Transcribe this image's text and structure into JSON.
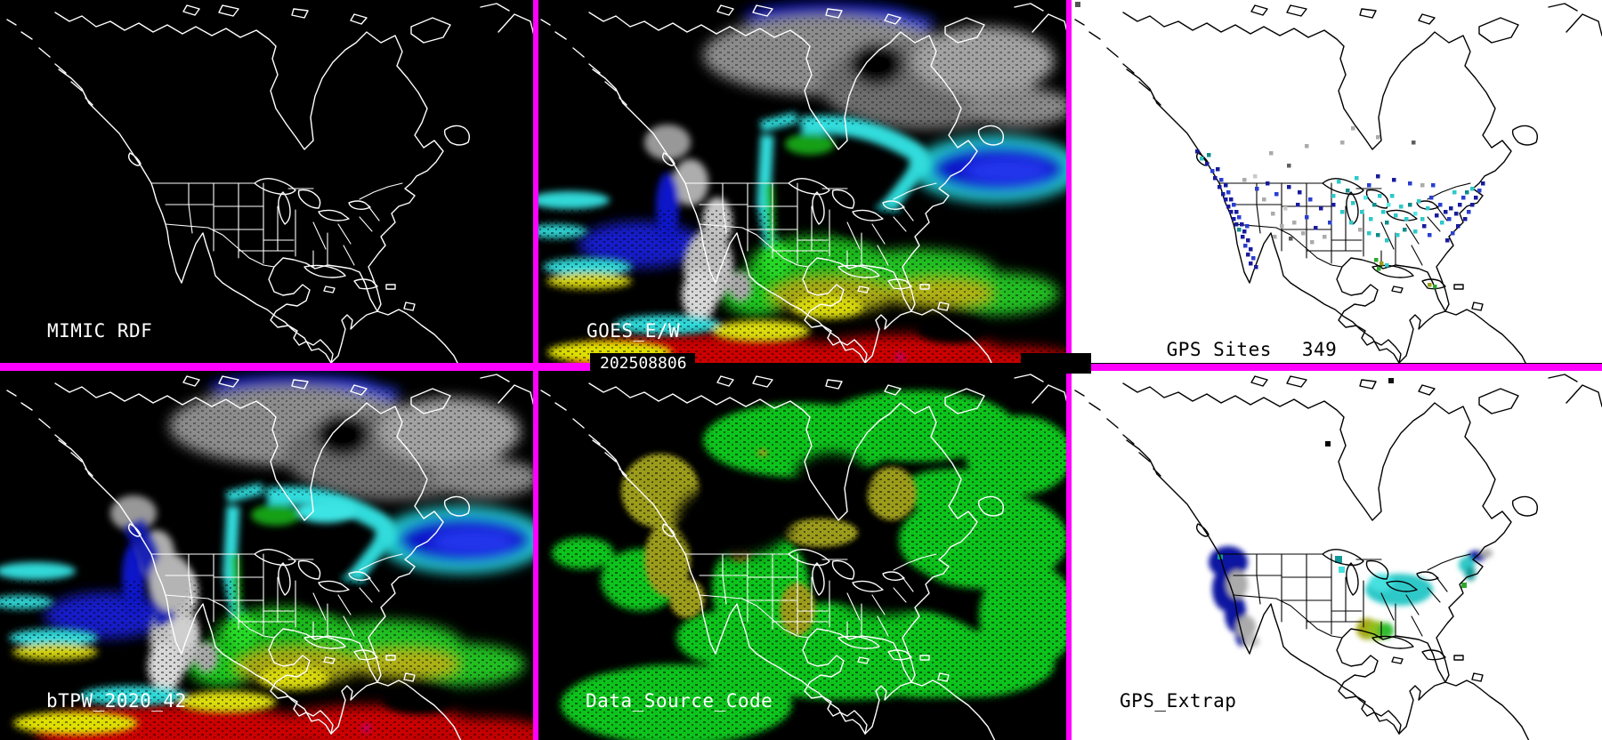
{
  "montage": {
    "timestamp": "202508806",
    "divider_color": "#FF00FF"
  },
  "panels": {
    "mimic_rdf": {
      "label": "MIMIC RDF",
      "background": "#000000",
      "map_line_color": "#FFFFFF"
    },
    "goes_ew": {
      "label": "GOES_E/W",
      "background": "#000000",
      "map_line_color": "#FFFFFF"
    },
    "gps_sites": {
      "label": "GPS Sites",
      "site_count": "349",
      "background": "#FFFFFF",
      "map_line_color": "#000000"
    },
    "btpw": {
      "label": "bTPW_2020_42",
      "background": "#000000",
      "map_line_color": "#FFFFFF"
    },
    "data_source_code": {
      "label": "Data_Source_Code",
      "background": "#000000",
      "map_line_color": "#FFFFFF"
    },
    "gps_extrap": {
      "label": "GPS_Extrap",
      "background": "#FFFFFF",
      "map_line_color": "#000000"
    }
  },
  "tpw_palette": {
    "cloud_gray": "#9A9A9A",
    "low_navy": "#0E14B4",
    "blue": "#2238E0",
    "cyan": "#30DCDC",
    "green": "#1EC41E",
    "olive": "#A8A818",
    "yellow": "#E0E000",
    "red": "#CC0000",
    "magenta_speck": "#C000C0"
  },
  "dsc_palette": {
    "satellite_green": "#0FC41A",
    "gps_olive": "#9C9C1C"
  },
  "dot_palette": {
    "n": "#181C9C",
    "b": "#2A3FD0",
    "c": "#2EC8C8",
    "bc": "#55E8E8",
    "t": "#0F8C8C",
    "g": "#ABABAB",
    "lg": "#C9C9C9",
    "dg": "#5E5E5E",
    "gr": "#2FA82F",
    "ol": "#9C9C1C"
  },
  "gps_dots": [
    [
      154,
      182,
      "n"
    ],
    [
      160,
      190,
      "b"
    ],
    [
      166,
      188,
      "n"
    ],
    [
      163,
      198,
      "n"
    ],
    [
      170,
      200,
      "b"
    ],
    [
      168,
      208,
      "n"
    ],
    [
      175,
      206,
      "n"
    ],
    [
      172,
      216,
      "n"
    ],
    [
      178,
      214,
      "b"
    ],
    [
      175,
      222,
      "n"
    ],
    [
      181,
      222,
      "n"
    ],
    [
      178,
      230,
      "n"
    ],
    [
      184,
      228,
      "b"
    ],
    [
      181,
      236,
      "n"
    ],
    [
      187,
      236,
      "n"
    ],
    [
      184,
      244,
      "n"
    ],
    [
      190,
      242,
      "b"
    ],
    [
      187,
      250,
      "n"
    ],
    [
      193,
      250,
      "n"
    ],
    [
      190,
      256,
      "t"
    ],
    [
      196,
      258,
      "n"
    ],
    [
      199,
      252,
      "b"
    ],
    [
      194,
      264,
      "n"
    ],
    [
      200,
      268,
      "n"
    ],
    [
      197,
      274,
      "b"
    ],
    [
      203,
      278,
      "n"
    ],
    [
      200,
      284,
      "n"
    ],
    [
      206,
      288,
      "b"
    ],
    [
      203,
      294,
      "n"
    ],
    [
      209,
      298,
      "n"
    ],
    [
      148,
      176,
      "c"
    ],
    [
      156,
      172,
      "t"
    ],
    [
      143,
      168,
      "n"
    ],
    [
      196,
      200,
      "g"
    ],
    [
      210,
      210,
      "b"
    ],
    [
      222,
      204,
      "n"
    ],
    [
      218,
      222,
      "g"
    ],
    [
      232,
      216,
      "b"
    ],
    [
      246,
      208,
      "n"
    ],
    [
      258,
      214,
      "n"
    ],
    [
      228,
      238,
      "g"
    ],
    [
      242,
      232,
      "lg"
    ],
    [
      256,
      228,
      "n"
    ],
    [
      238,
      252,
      "g"
    ],
    [
      252,
      248,
      "g"
    ],
    [
      266,
      242,
      "b"
    ],
    [
      230,
      264,
      "g"
    ],
    [
      248,
      266,
      "dg"
    ],
    [
      262,
      260,
      "g"
    ],
    [
      276,
      254,
      "n"
    ],
    [
      272,
      270,
      "g"
    ],
    [
      286,
      264,
      "g"
    ],
    [
      292,
      248,
      "b"
    ],
    [
      282,
      232,
      "n"
    ],
    [
      296,
      228,
      "n"
    ],
    [
      270,
      222,
      "b"
    ],
    [
      208,
      196,
      "lg"
    ],
    [
      226,
      170,
      "g"
    ],
    [
      266,
      162,
      "g"
    ],
    [
      306,
      158,
      "g"
    ],
    [
      346,
      152,
      "g"
    ],
    [
      386,
      158,
      "dg"
    ],
    [
      246,
      184,
      "dg"
    ],
    [
      318,
      142,
      "g"
    ],
    [
      302,
      202,
      "c"
    ],
    [
      312,
      212,
      "t"
    ],
    [
      322,
      198,
      "c"
    ],
    [
      318,
      226,
      "c"
    ],
    [
      332,
      220,
      "bc"
    ],
    [
      328,
      236,
      "c"
    ],
    [
      342,
      228,
      "t"
    ],
    [
      338,
      244,
      "c"
    ],
    [
      352,
      236,
      "c"
    ],
    [
      348,
      218,
      "c"
    ],
    [
      358,
      228,
      "bc"
    ],
    [
      356,
      248,
      "t"
    ],
    [
      366,
      240,
      "c"
    ],
    [
      362,
      218,
      "c"
    ],
    [
      372,
      230,
      "c"
    ],
    [
      378,
      244,
      "c"
    ],
    [
      382,
      228,
      "t"
    ],
    [
      388,
      238,
      "bc"
    ],
    [
      392,
      224,
      "c"
    ],
    [
      396,
      244,
      "c"
    ],
    [
      402,
      232,
      "c"
    ],
    [
      406,
      220,
      "b"
    ],
    [
      412,
      240,
      "n"
    ],
    [
      416,
      228,
      "b"
    ],
    [
      422,
      236,
      "n"
    ],
    [
      418,
      248,
      "c"
    ],
    [
      428,
      232,
      "n"
    ],
    [
      426,
      244,
      "b"
    ],
    [
      434,
      238,
      "n"
    ],
    [
      438,
      228,
      "n"
    ],
    [
      442,
      220,
      "b"
    ],
    [
      336,
      206,
      "b"
    ],
    [
      346,
      196,
      "n"
    ],
    [
      364,
      200,
      "n"
    ],
    [
      382,
      204,
      "b"
    ],
    [
      396,
      206,
      "g"
    ],
    [
      408,
      206,
      "b"
    ],
    [
      432,
      214,
      "c"
    ],
    [
      296,
      218,
      "c"
    ],
    [
      306,
      236,
      "c"
    ],
    [
      316,
      248,
      "c"
    ],
    [
      326,
      256,
      "g"
    ],
    [
      336,
      260,
      "c"
    ],
    [
      346,
      262,
      "t"
    ],
    [
      356,
      268,
      "c"
    ],
    [
      368,
      262,
      "c"
    ],
    [
      376,
      256,
      "t"
    ],
    [
      388,
      258,
      "c"
    ],
    [
      398,
      252,
      "n"
    ],
    [
      404,
      262,
      "b"
    ],
    [
      344,
      290,
      "gr"
    ],
    [
      350,
      294,
      "ol"
    ],
    [
      347,
      300,
      "gr"
    ],
    [
      356,
      296,
      "c"
    ],
    [
      436,
      252,
      "n"
    ],
    [
      430,
      260,
      "b"
    ],
    [
      424,
      268,
      "n"
    ],
    [
      444,
      244,
      "n"
    ],
    [
      448,
      236,
      "b"
    ],
    [
      452,
      228,
      "n"
    ],
    [
      456,
      220,
      "n"
    ],
    [
      460,
      212,
      "b"
    ],
    [
      464,
      204,
      "n"
    ],
    [
      452,
      210,
      "c"
    ],
    [
      446,
      214,
      "t"
    ],
    [
      404,
      318,
      "ol"
    ],
    [
      410,
      320,
      "gr"
    ]
  ]
}
